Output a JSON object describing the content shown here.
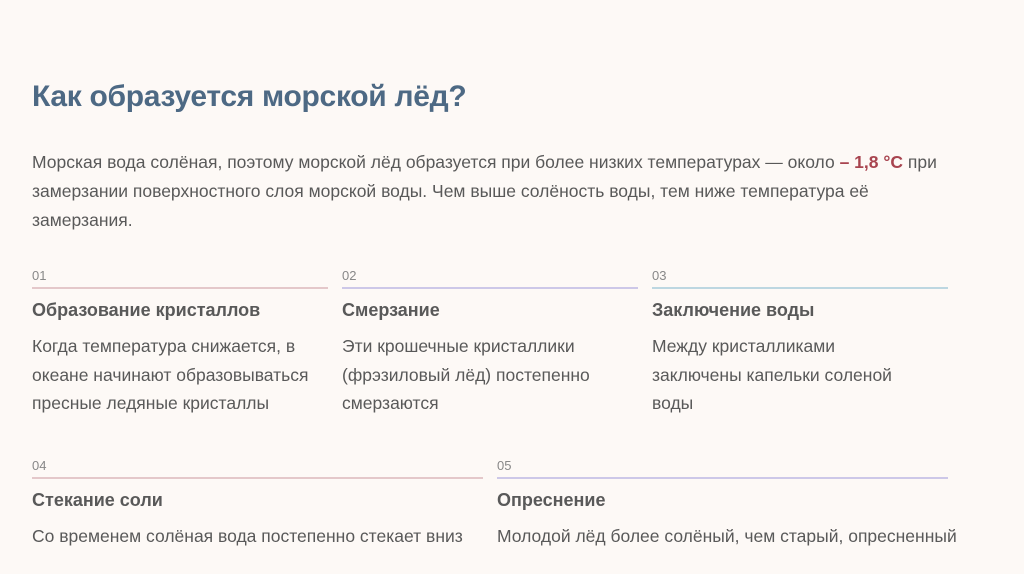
{
  "title": "Как образуется морской лёд?",
  "intro": {
    "before": "Морская вода солёная, поэтому морской лёд образуется при более низких температурах — около ",
    "highlight": "– 1,8 °C",
    "after": " при замерзании поверхностного слоя морской воды. Чем выше солёность воды, тем ниже температура её замерзания."
  },
  "colors": {
    "title": "#4d6984",
    "highlight": "#a8444f",
    "rule_pink": "#e4c8ca",
    "rule_lavender": "#cdc8e8",
    "rule_blue": "#bdd7e1"
  },
  "steps": [
    {
      "number": "01",
      "heading": "Образование кристаллов",
      "text": "Когда температура снижается, в океане начинают образовываться пресные ледяные кристаллы"
    },
    {
      "number": "02",
      "heading": "Смерзание",
      "text": "Эти крошечные кристаллики (фрэзиловый лёд) постепенно смерзаются"
    },
    {
      "number": "03",
      "heading": "Заключение воды",
      "text": "Между кристалликами заключены капельки соленой воды"
    },
    {
      "number": "04",
      "heading": "Стекание соли",
      "text": "Со временем солёная вода постепенно стекает вниз"
    },
    {
      "number": "05",
      "heading": "Опреснение",
      "text": "Молодой лёд более солёный, чем старый, опресненный"
    }
  ]
}
